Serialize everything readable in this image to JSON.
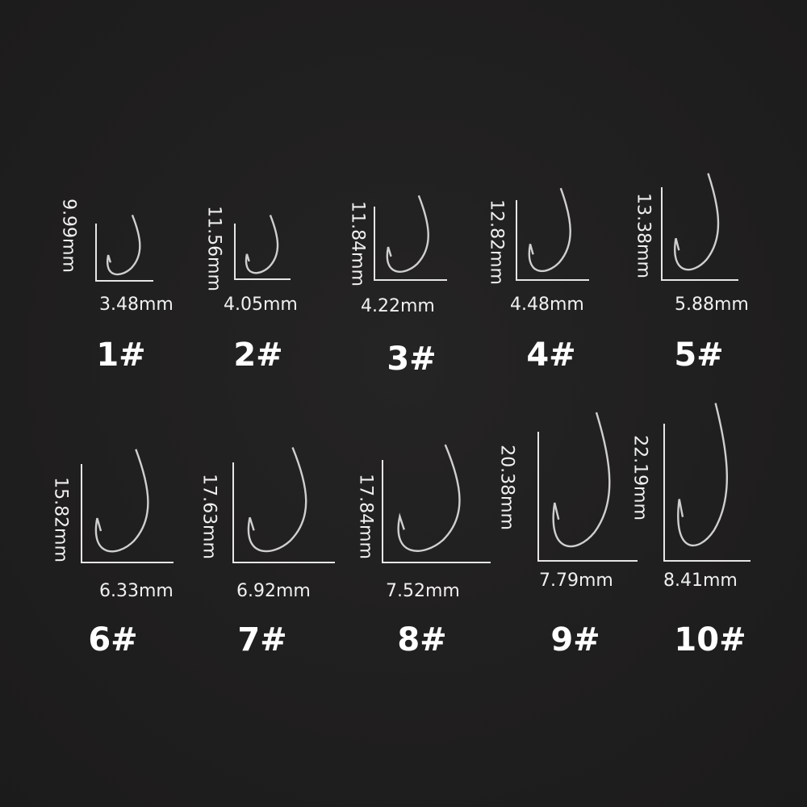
{
  "hooks": [
    {
      "size": "1#",
      "length": "9.99mm",
      "width": "3.48mm"
    },
    {
      "size": "2#",
      "length": "11.56mm",
      "width": "4.05mm"
    },
    {
      "size": "3#",
      "length": "11.84mm",
      "width": "4.22mm"
    },
    {
      "size": "4#",
      "length": "12.82mm",
      "width": "4.48mm"
    },
    {
      "size": "5#",
      "length": "13.38mm",
      "width": "5.88mm"
    },
    {
      "size": "6#",
      "length": "15.82mm",
      "width": "6.33mm"
    },
    {
      "size": "7#",
      "length": "17.63mm",
      "width": "6.92mm"
    },
    {
      "size": "8#",
      "length": "17.84mm",
      "width": "7.52mm"
    },
    {
      "size": "9#",
      "length": "20.38mm",
      "width": "7.79mm"
    },
    {
      "size": "10#",
      "length": "22.19mm",
      "width": "8.41mm"
    }
  ],
  "colors": {
    "background": "#1f1e1e",
    "line": "#e6e6e6",
    "text": "#f2f2f2"
  }
}
